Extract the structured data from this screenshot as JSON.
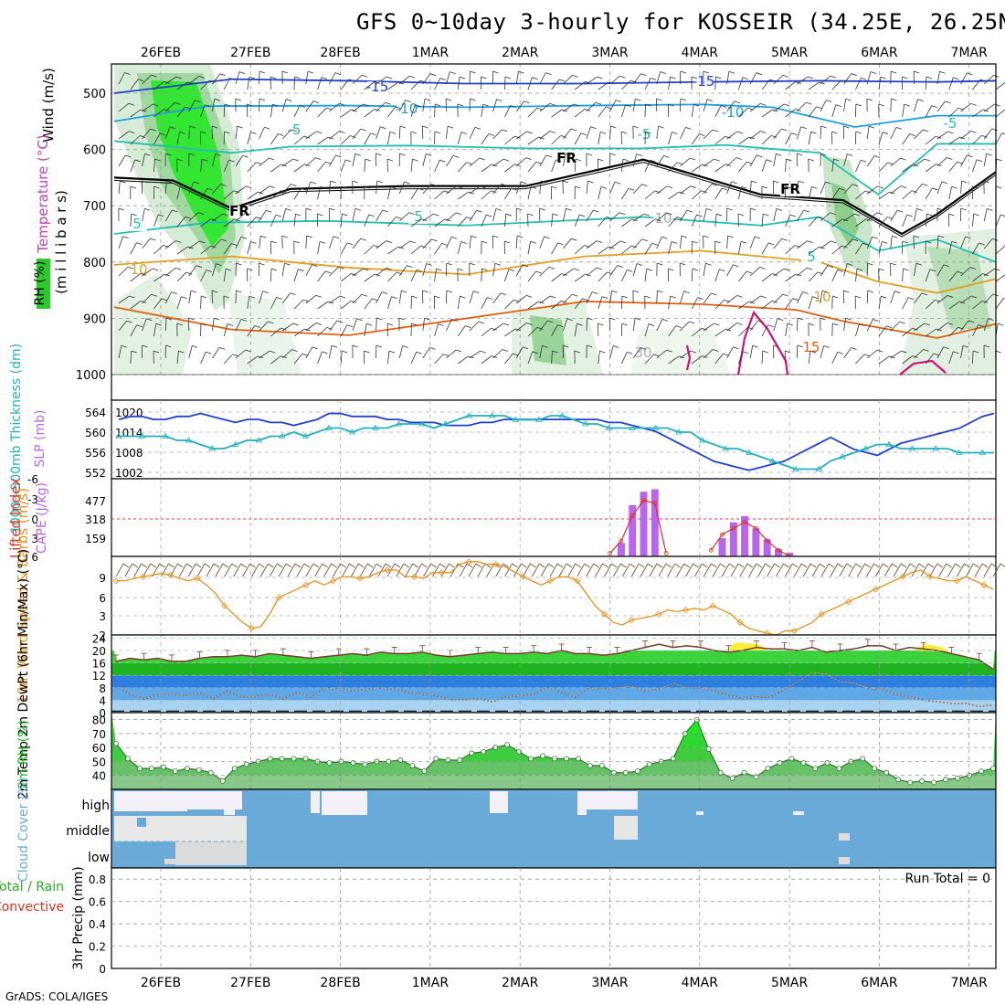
{
  "title": "GFS 0~10day 3-hourly for KOSSEIR (34.25E, 26.25N)",
  "credit": "GrADS: COLA/IGES",
  "dates": [
    "26FEB",
    "27FEB",
    "28FEB",
    "1MAR",
    "2MAR",
    "3MAR",
    "4MAR",
    "5MAR",
    "6MAR",
    "7MAR"
  ],
  "colors": {
    "temp_cold": "#1f3fd0",
    "temp_cool": "#1aa0e0",
    "temp_mild": "#1fc0b0",
    "freezing": "#000000",
    "temp_warm": "#e0a020",
    "temp_hot": "#e06010",
    "temp_vhot": "#d0107a",
    "rh_green": "#1ee61e",
    "slp": "#2040d0",
    "thickness": "#20b0c0",
    "cape": "#b866f0",
    "lifted": "#e03020",
    "wind": "#e8901a",
    "temp2m": "#1eb41e",
    "cloud": "#6aaad8"
  },
  "chart_data": [
    {
      "type": "heatmap",
      "panel": "upper-air",
      "labels": {
        "wind": "Wind (m/s)",
        "temp": "Temperature (°C)",
        "rh": "RH (%)",
        "pressure": "(m i l l i b a r s)"
      },
      "ytick_labels": [
        "500",
        "600",
        "700",
        "800",
        "900",
        "1000"
      ],
      "yticks": [
        500,
        600,
        700,
        800,
        900,
        1000
      ],
      "contour_labels": [
        "-15",
        "-15",
        "-10",
        "-10",
        "-5",
        "-5",
        "-5",
        "5",
        "5",
        "5",
        "10",
        "10",
        "15",
        "FR",
        "FR",
        "FR",
        "10",
        "30"
      ],
      "isotherms": [
        {
          "name": "-15",
          "points": [
            [
              0,
              500
            ],
            [
              10,
              475
            ],
            [
              20,
              478
            ],
            [
              30,
              483
            ],
            [
              40,
              483
            ],
            [
              50,
              480
            ],
            [
              60,
              478
            ],
            [
              70,
              480
            ],
            [
              75,
              478
            ]
          ]
        },
        {
          "name": "-10",
          "points": [
            [
              0,
              550
            ],
            [
              8,
              523
            ],
            [
              20,
              522
            ],
            [
              30,
              525
            ],
            [
              40,
              522
            ],
            [
              50,
              520
            ],
            [
              56,
              525
            ],
            [
              63,
              560
            ],
            [
              70,
              540
            ],
            [
              75,
              540
            ]
          ]
        },
        {
          "name": "-5",
          "points": [
            [
              0,
              585
            ],
            [
              10,
              606
            ],
            [
              15,
              595
            ],
            [
              25,
              593
            ],
            [
              35,
              598
            ],
            [
              45,
              598
            ],
            [
              52,
              592
            ],
            [
              60,
              606
            ],
            [
              65,
              680
            ],
            [
              70,
              590
            ],
            [
              75,
              590
            ]
          ]
        },
        {
          "name": "FR",
          "points": [
            [
              0,
              650
            ],
            [
              5,
              655
            ],
            [
              10,
              705
            ],
            [
              15,
              670
            ],
            [
              25,
              665
            ],
            [
              35,
              665
            ],
            [
              45,
              618
            ],
            [
              55,
              680
            ],
            [
              62,
              690
            ],
            [
              67,
              750
            ],
            [
              70,
              715
            ],
            [
              75,
              640
            ]
          ]
        },
        {
          "name": "5",
          "points": [
            [
              0,
              750
            ],
            [
              8,
              730
            ],
            [
              18,
              727
            ],
            [
              30,
              735
            ],
            [
              45,
              720
            ],
            [
              55,
              735
            ],
            [
              60,
              720
            ],
            [
              65,
              780
            ],
            [
              70,
              760
            ],
            [
              75,
              800
            ]
          ]
        },
        {
          "name": "10",
          "points": [
            [
              0,
              805
            ],
            [
              10,
              790
            ],
            [
              20,
              810
            ],
            [
              30,
              822
            ],
            [
              40,
              790
            ],
            [
              50,
              780
            ],
            [
              60,
              800
            ],
            [
              65,
              835
            ],
            [
              70,
              855
            ],
            [
              75,
              830
            ]
          ]
        },
        {
          "name": "15",
          "points": [
            [
              0,
              880
            ],
            [
              10,
              920
            ],
            [
              20,
              930
            ],
            [
              30,
              900
            ],
            [
              40,
              870
            ],
            [
              50,
              875
            ],
            [
              58,
              885
            ],
            [
              62,
              905
            ],
            [
              70,
              935
            ],
            [
              75,
              910
            ]
          ]
        }
      ]
    },
    {
      "type": "line",
      "panel": "slp-thickness",
      "labels": {
        "slp": "SLP (mb)",
        "thickness": "1000~500mb Thickness (dm)"
      },
      "left_ticks": [
        "564",
        "560",
        "556",
        "552"
      ],
      "right_ticks": [
        "1020",
        "1014",
        "1008",
        "1002"
      ],
      "series": [
        {
          "name": "SLP (mb)",
          "axis": "slp",
          "ylim": [
            1000,
            1022
          ],
          "values": [
            1018,
            1019,
            1019,
            1018,
            1018,
            1019,
            1019,
            1020,
            1019,
            1018,
            1017,
            1018,
            1018,
            1017,
            1017,
            1016,
            1017,
            1018,
            1020,
            1020,
            1019,
            1019,
            1019,
            1018,
            1018,
            1017,
            1017,
            1017,
            1016,
            1016,
            1016,
            1017,
            1017,
            1018,
            1018,
            1018,
            1018,
            1018,
            1018,
            1018,
            1018,
            1018,
            1017,
            1017,
            1016,
            1015,
            1014,
            1012,
            1010,
            1008,
            1006,
            1004,
            1003,
            1002,
            1001,
            1002,
            1003,
            1004,
            1006,
            1008,
            1010,
            1012,
            1010,
            1008,
            1007,
            1006,
            1008,
            1010,
            1011,
            1012,
            1013,
            1014,
            1015,
            1017,
            1019,
            1020
          ]
        },
        {
          "name": "Thickness (dm)",
          "axis": "thickness",
          "ylim": [
            550,
            566
          ],
          "values": [
            559,
            559,
            559,
            559,
            559,
            558,
            558,
            557,
            556,
            556,
            557,
            558,
            558,
            559,
            559,
            560,
            559,
            560,
            561,
            561,
            560,
            561,
            561,
            561,
            562,
            562,
            562,
            561,
            562,
            563,
            564,
            564,
            564,
            564,
            563,
            563,
            563,
            564,
            564,
            563,
            562,
            562,
            561,
            561,
            561,
            561,
            561,
            561,
            560,
            560,
            558,
            557,
            556,
            556,
            555,
            554,
            553,
            552,
            551,
            551,
            551,
            553,
            554,
            555,
            556,
            557,
            557,
            556,
            556,
            556,
            556,
            556,
            555,
            555,
            555,
            555
          ]
        }
      ]
    },
    {
      "type": "bar",
      "panel": "cape-li",
      "labels": {
        "li": "Lifted Index",
        "cape": "CAPE (J/kg)"
      },
      "cape_ticks": [
        "477",
        "318",
        "159"
      ],
      "li_ticks": [
        "-6",
        "-3",
        "0",
        "3",
        "6"
      ],
      "series": [
        {
          "name": "CAPE (J/kg)",
          "ylim": [
            0,
            636
          ],
          "values": {
            "45": 110,
            "46": 420,
            "47": 530,
            "48": 550,
            "54": 150,
            "55": 280,
            "56": 330,
            "57": 230,
            "58": 140,
            "59": 60,
            "60": 30
          }
        },
        {
          "name": "Lifted Index",
          "ylim": [
            6,
            -6
          ],
          "values": {
            "44": 5.5,
            "45": 3.5,
            "46": -0.5,
            "47": -3,
            "48": -2.5,
            "49": 5.5,
            "53": 5,
            "54": 2.5,
            "55": 1.5,
            "56": 0.5,
            "57": 1.5,
            "58": 3.5,
            "59": 5,
            "60": 6
          }
        }
      ]
    },
    {
      "type": "line",
      "panel": "wind10m",
      "labels": {
        "name": "10m Wind Speed & Barbs (m/s)"
      },
      "ticks": [
        "9",
        "6",
        "3",
        "2"
      ],
      "ylim": [
        2,
        11
      ],
      "series": [
        {
          "name": "10m Wind Speed",
          "values": [
            8.5,
            8.5,
            8.8,
            9,
            9.2,
            9.4,
            9.2,
            8.8,
            8.5,
            8.8,
            8,
            7,
            5.5,
            4.5,
            3.5,
            2.8,
            3,
            4.5,
            6.5,
            7,
            7.5,
            8,
            8.5,
            8,
            8.5,
            9,
            9,
            8.8,
            9,
            9.5,
            9.8,
            9.8,
            9,
            9,
            8.8,
            9.5,
            9.5,
            9.5,
            10.5,
            10.8,
            10.8,
            10.5,
            10.5,
            10.2,
            9.6,
            9,
            8.5,
            8,
            8.5,
            9,
            9,
            8.5,
            7,
            5.5,
            4.5,
            3.5,
            3.2,
            3.8,
            4,
            4.2,
            4.5,
            5,
            4.8,
            5,
            5.2,
            5,
            5.5,
            5,
            4.5,
            3.5,
            2.8,
            2.5,
            2.2,
            2,
            2.5,
            2.5,
            3,
            3.5,
            4.5,
            5,
            5.5,
            6,
            6.5,
            7,
            7.5,
            8,
            8.5,
            9,
            9.5,
            9.8,
            9,
            8.8,
            8.5,
            8.5,
            9,
            8.5,
            8,
            7.5
          ]
        }
      ]
    },
    {
      "type": "area",
      "panel": "temp2m",
      "labels": {
        "name": "2m Temp 2m DewPt (6hr Min/Max) (°C)"
      },
      "ticks": [
        "24",
        "20",
        "16",
        "12",
        "8",
        "4",
        "0"
      ],
      "ylim": [
        0,
        25
      ],
      "series": [
        {
          "name": "2m Temp",
          "values": [
            16.5,
            17.5,
            17,
            17.5,
            16.5,
            16.5,
            17.5,
            18,
            18,
            18.5,
            18,
            19,
            18.5,
            18,
            17.5,
            18,
            18.5,
            19,
            18.5,
            19.5,
            19,
            19,
            19.5,
            18.5,
            18,
            18.5,
            19,
            19.5,
            19,
            19,
            19.5,
            19,
            20,
            19,
            19,
            18.5,
            19,
            20,
            21,
            22,
            21,
            21.5,
            21,
            20,
            19.5,
            20,
            21,
            20.5,
            20.5,
            20,
            21,
            19.5,
            20,
            20.5,
            21.5,
            21.5,
            20,
            21,
            20.5,
            20,
            19,
            18,
            17,
            14
          ]
        },
        {
          "name": "2m DewPt",
          "values": [
            8.5,
            6,
            4.5,
            5.5,
            6,
            5.5,
            6.5,
            4.5,
            7,
            5,
            5,
            6,
            4.5,
            6.5,
            5,
            8,
            7.5,
            7,
            7.5,
            8,
            7.5,
            6.5,
            6,
            5.5,
            4,
            4,
            4.5,
            3.5,
            5,
            5.5,
            6,
            8,
            6.5,
            5,
            8,
            7.5,
            8,
            8.5,
            7,
            7.5,
            9.5,
            8,
            8,
            7,
            5.5,
            4.5,
            5,
            5,
            7.5,
            10,
            13,
            12.5,
            10,
            9.5,
            8,
            7.5,
            6,
            5,
            4,
            3.5,
            3,
            3,
            2,
            2.5
          ]
        }
      ]
    },
    {
      "type": "area",
      "panel": "rh2m",
      "labels": {
        "name": "2m RH (%)"
      },
      "ticks": [
        "80",
        "70",
        "60",
        "50",
        "40"
      ],
      "ylim": [
        30,
        85
      ],
      "series": [
        {
          "name": "2m RH",
          "values": [
            63,
            52,
            45,
            45,
            46,
            43,
            45,
            44,
            42,
            36,
            45,
            48,
            50,
            52,
            52,
            52,
            52,
            50,
            49,
            50,
            49,
            48,
            50,
            50,
            51,
            47,
            43,
            52,
            51,
            51,
            56,
            57,
            60,
            62,
            57,
            52,
            54,
            52,
            52,
            52,
            47,
            47,
            42,
            42,
            43,
            48,
            50,
            52,
            70,
            80,
            59,
            42,
            38,
            42,
            39,
            45,
            49,
            52,
            49,
            45,
            49,
            45,
            50,
            52,
            45,
            42,
            37,
            35,
            36,
            35,
            37,
            38,
            40,
            43,
            45
          ]
        }
      ]
    },
    {
      "type": "table",
      "panel": "cloud",
      "labels": {
        "name": "Cloud Cover (%)",
        "high": "high",
        "middle": "middle",
        "low": "low"
      }
    },
    {
      "type": "bar",
      "panel": "precip",
      "labels": {
        "name": "3hr Precip (mm)",
        "total": "Total / Rain",
        "conv": "Convective",
        "run_total": "Run Total = 0"
      },
      "ticks": [
        "0.8",
        "0.6",
        "0.4",
        "0.2",
        "0"
      ],
      "ylim": [
        0,
        0.9
      ],
      "values": []
    }
  ]
}
